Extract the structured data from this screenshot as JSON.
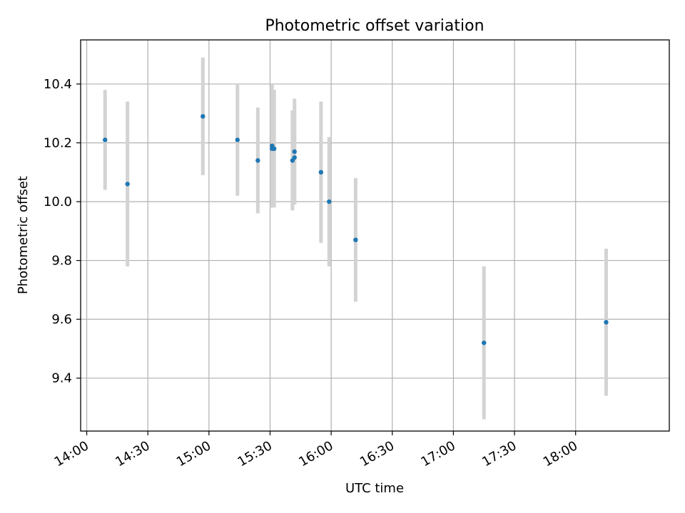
{
  "chart_data": {
    "type": "scatter",
    "title": "Photometric offset variation",
    "xlabel": "UTC time",
    "ylabel": "Photometric offset",
    "x_axis_type": "time",
    "xlim": [
      "13:57",
      "18:46"
    ],
    "ylim": [
      9.22,
      10.55
    ],
    "x_ticks": [
      "14:00",
      "14:30",
      "15:00",
      "15:30",
      "16:00",
      "16:30",
      "17:00",
      "17:30",
      "18:00"
    ],
    "y_ticks": [
      9.4,
      9.6,
      9.8,
      10.0,
      10.2,
      10.4
    ],
    "y_tick_labels": [
      "9.4",
      "9.6",
      "9.8",
      "10.0",
      "10.2",
      "10.4"
    ],
    "grid": true,
    "legend": "none",
    "series": [
      {
        "marker_color": "#1f77b4",
        "errorbar_color": "#d3d3d3",
        "points": [
          {
            "x": "14:09",
            "y": 10.21,
            "err": 0.17
          },
          {
            "x": "14:20",
            "y": 10.06,
            "err": 0.28
          },
          {
            "x": "14:57",
            "y": 10.29,
            "err": 0.2
          },
          {
            "x": "15:14",
            "y": 10.21,
            "err": 0.19
          },
          {
            "x": "15:24",
            "y": 10.14,
            "err": 0.18
          },
          {
            "x": "15:31",
            "y": 10.18,
            "err": 0.2
          },
          {
            "x": "15:31",
            "y": 10.19,
            "err": 0.21
          },
          {
            "x": "15:32",
            "y": 10.18,
            "err": 0.2
          },
          {
            "x": "15:41",
            "y": 10.14,
            "err": 0.17
          },
          {
            "x": "15:42",
            "y": 10.15,
            "err": 0.16
          },
          {
            "x": "15:42",
            "y": 10.17,
            "err": 0.18
          },
          {
            "x": "15:55",
            "y": 10.1,
            "err": 0.24
          },
          {
            "x": "15:59",
            "y": 10.0,
            "err": 0.22
          },
          {
            "x": "16:12",
            "y": 9.87,
            "err": 0.21
          },
          {
            "x": "17:15",
            "y": 9.52,
            "err": 0.26
          },
          {
            "x": "18:15",
            "y": 9.59,
            "err": 0.25
          }
        ]
      }
    ]
  }
}
